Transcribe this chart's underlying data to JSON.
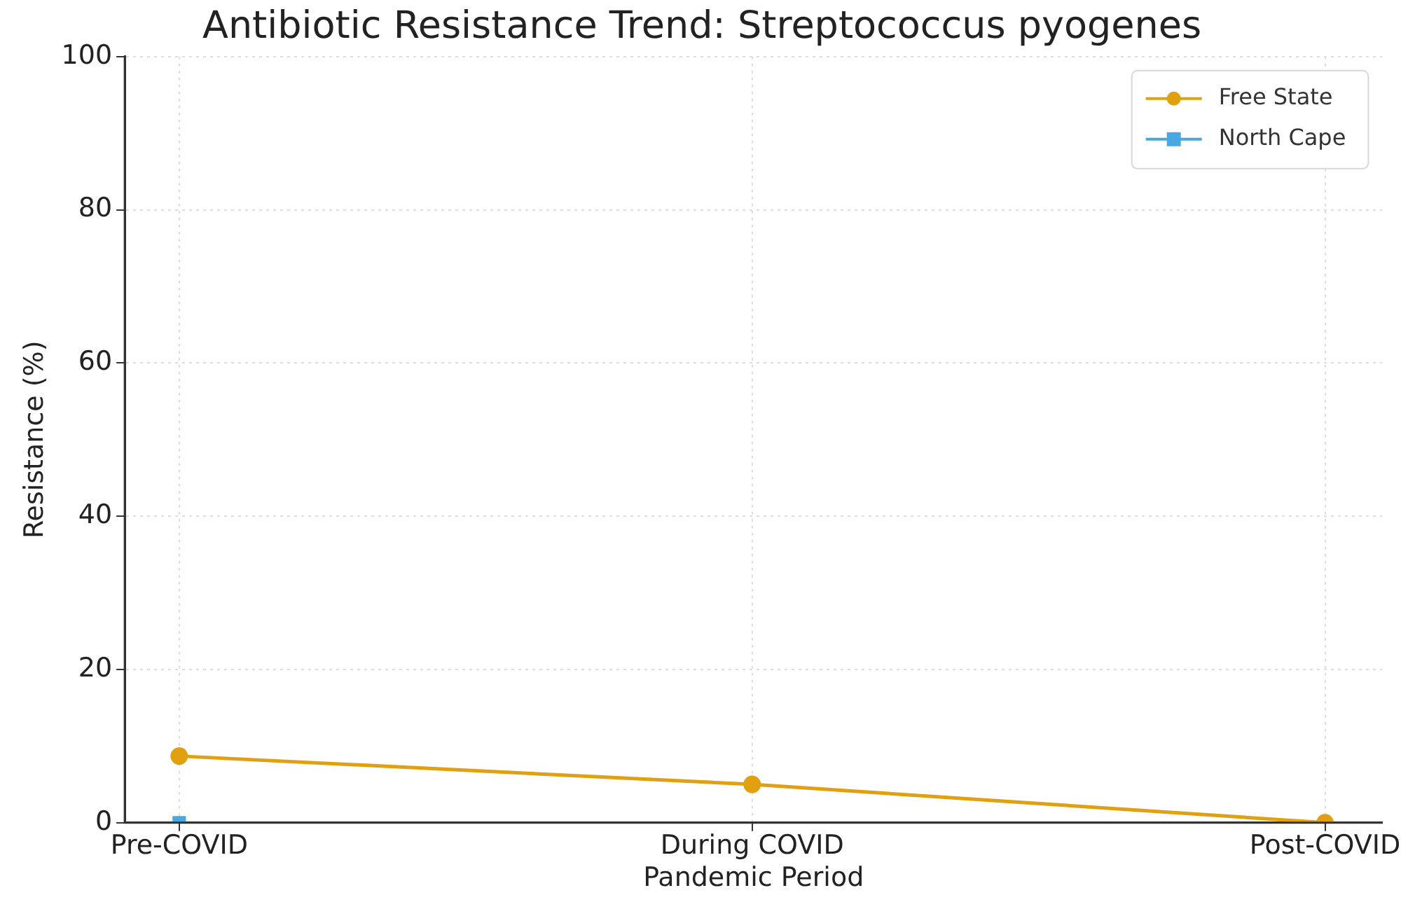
{
  "chart_data": {
    "type": "line",
    "title": "Antibiotic Resistance Trend: Streptococcus pyogenes",
    "xlabel": "Pandemic Period",
    "ylabel": "Resistance (%)",
    "categories": [
      "Pre-COVID",
      "During COVID",
      "Post-COVID"
    ],
    "series": [
      {
        "name": "Free State",
        "color": "#e0a010",
        "marker": "circle",
        "values": [
          8.7,
          5.0,
          0
        ]
      },
      {
        "name": "North Cape",
        "color": "#4aa8e0",
        "marker": "square",
        "values": [
          0,
          null,
          null
        ]
      }
    ],
    "ylim": [
      0,
      100
    ],
    "yticks": [
      0,
      20,
      40,
      60,
      80,
      100
    ],
    "grid": true,
    "legend": "top right",
    "line_style": "solid"
  }
}
